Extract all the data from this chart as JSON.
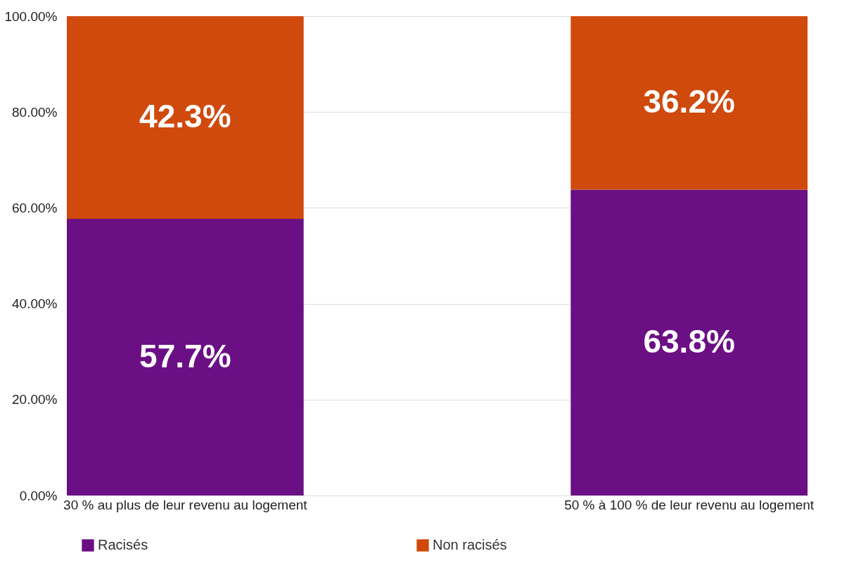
{
  "chart_data": {
    "type": "bar",
    "stacked": true,
    "categories": [
      "30 % au plus de leur revenu au logement",
      "50 % à 100 % de leur revenu au logement"
    ],
    "series": [
      {
        "name": "Racisés",
        "color": "#6b0f85",
        "values": [
          57.7,
          63.8
        ],
        "value_labels": [
          "57.7%",
          "63.8%"
        ]
      },
      {
        "name": "Non racisés",
        "color": "#cf4a0c",
        "values": [
          42.3,
          36.2
        ],
        "value_labels": [
          "42.3%",
          "36.2%"
        ]
      }
    ],
    "ylim": [
      0,
      100
    ],
    "yticks": [
      {
        "value": 0,
        "label": "0.00%"
      },
      {
        "value": 20,
        "label": "20.00%"
      },
      {
        "value": 40,
        "label": "40.00%"
      },
      {
        "value": 60,
        "label": "60.00%"
      },
      {
        "value": 80,
        "label": "80.00%"
      },
      {
        "value": 100,
        "label": "100.00%"
      }
    ],
    "grid": "y",
    "legend": "bottom"
  }
}
